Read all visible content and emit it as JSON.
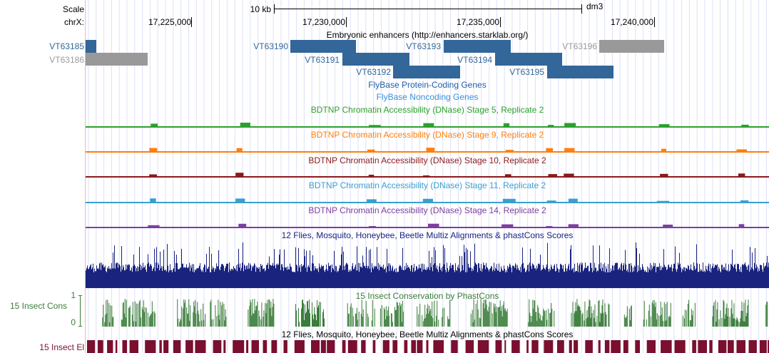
{
  "ruler": {
    "scale_label": "Scale",
    "scale_bar_label": "10 kb",
    "assembly": "dm3",
    "chrom_label": "chrX:",
    "ticks": [
      "17,225,000",
      "17,230,000",
      "17,235,000",
      "17,240,000"
    ]
  },
  "enhancers": {
    "title": "Embryonic enhancers (http://enhancers.starklab.org/)",
    "items": [
      {
        "name": "VT63185",
        "color": "#336699"
      },
      {
        "name": "VT63186",
        "color": "#999999"
      },
      {
        "name": "VT63190",
        "color": "#336699"
      },
      {
        "name": "VT63191",
        "color": "#336699"
      },
      {
        "name": "VT63192",
        "color": "#336699"
      },
      {
        "name": "VT63193",
        "color": "#336699"
      },
      {
        "name": "VT63194",
        "color": "#336699"
      },
      {
        "name": "VT63195",
        "color": "#336699"
      },
      {
        "name": "VT63196",
        "color": "#999999"
      }
    ]
  },
  "flybase_coding": {
    "title": "FlyBase Protein-Coding Genes",
    "color": "#1f5fa8"
  },
  "flybase_noncoding": {
    "title": "FlyBase Noncoding Genes",
    "color": "#3c8fd6"
  },
  "dnase_tracks": [
    {
      "title": "BDTNP Chromatin Accessibility (DNase) Stage 5, Replicate 2",
      "color": "#2ca02c"
    },
    {
      "title": "BDTNP Chromatin Accessibility (DNase) Stage 9, Replicate 2",
      "color": "#ff7f0e"
    },
    {
      "title": "BDTNP Chromatin Accessibility (DNase) Stage 10, Replicate 2",
      "color": "#8b1a1a"
    },
    {
      "title": "BDTNP Chromatin Accessibility (DNase) Stage 11, Replicate 2",
      "color": "#3a9fd0"
    },
    {
      "title": "BDTNP Chromatin Accessibility (DNase) Stage 14, Replicate 2",
      "color": "#7b3fa0"
    }
  ],
  "multiz": {
    "title": "12 Flies, Mosquito, Honeybee, Beetle Multiz Alignments & phastCons Scores",
    "color": "#1a237e"
  },
  "insect_cons": {
    "title": "15 Insect Conservation by PhastCons",
    "side_label": "15 Insect Cons",
    "axis_max": "1",
    "axis_min": "0",
    "color": "#3a7d3a"
  },
  "insect_el": {
    "title": "12 Flies, Mosquito, Honeybee, Beetle Multiz Alignments & phastCons Scores",
    "side_label": "15 Insect El",
    "color": "#7a0f2f"
  }
}
